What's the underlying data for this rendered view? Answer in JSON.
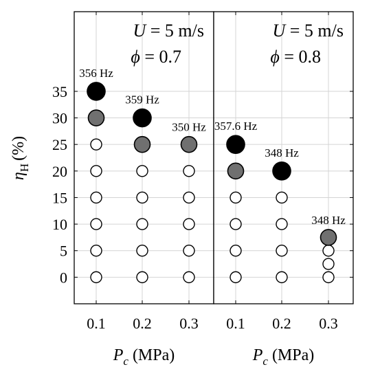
{
  "chart_data": {
    "type": "scatter",
    "ylabel": "ηH (%)",
    "ylabel_symbol": "η",
    "ylabel_sub": "H",
    "ylabel_unit": "(%)",
    "xlabel_symbol": "P",
    "xlabel_sub": "c",
    "xlabel_unit": "(MPa)",
    "ylim": [
      -5,
      50
    ],
    "yticks": [
      0,
      5,
      10,
      15,
      20,
      25,
      30,
      35
    ],
    "grid": true,
    "state_colors": {
      "stable": "#ffffff",
      "intermittent": "#707070",
      "unstable": "#000000"
    },
    "panels": [
      {
        "annotation_line1": "U = 5 m/s",
        "annotation_line1_var": "U",
        "annotation_line1_rest": " = 5 m/s",
        "annotation_line2_var": "ϕ",
        "annotation_line2_rest": " = 0.7",
        "xticks": [
          "0.1",
          "0.2",
          "0.3"
        ],
        "xvalues": [
          0.1,
          0.2,
          0.3
        ],
        "points": [
          {
            "x": 0.1,
            "y": 0,
            "state": "stable"
          },
          {
            "x": 0.1,
            "y": 5,
            "state": "stable"
          },
          {
            "x": 0.1,
            "y": 10,
            "state": "stable"
          },
          {
            "x": 0.1,
            "y": 15,
            "state": "stable"
          },
          {
            "x": 0.1,
            "y": 20,
            "state": "stable"
          },
          {
            "x": 0.1,
            "y": 25,
            "state": "stable"
          },
          {
            "x": 0.1,
            "y": 30,
            "state": "intermittent"
          },
          {
            "x": 0.1,
            "y": 35,
            "state": "unstable",
            "label": "356 Hz"
          },
          {
            "x": 0.2,
            "y": 0,
            "state": "stable"
          },
          {
            "x": 0.2,
            "y": 5,
            "state": "stable"
          },
          {
            "x": 0.2,
            "y": 10,
            "state": "stable"
          },
          {
            "x": 0.2,
            "y": 15,
            "state": "stable"
          },
          {
            "x": 0.2,
            "y": 20,
            "state": "stable"
          },
          {
            "x": 0.2,
            "y": 25,
            "state": "intermittent"
          },
          {
            "x": 0.2,
            "y": 30,
            "state": "unstable",
            "label": "359 Hz"
          },
          {
            "x": 0.3,
            "y": 0,
            "state": "stable"
          },
          {
            "x": 0.3,
            "y": 5,
            "state": "stable"
          },
          {
            "x": 0.3,
            "y": 10,
            "state": "stable"
          },
          {
            "x": 0.3,
            "y": 15,
            "state": "stable"
          },
          {
            "x": 0.3,
            "y": 20,
            "state": "stable"
          },
          {
            "x": 0.3,
            "y": 25,
            "state": "intermittent",
            "label": "350 Hz"
          }
        ]
      },
      {
        "annotation_line1_var": "U",
        "annotation_line1_rest": " = 5 m/s",
        "annotation_line2_var": "ϕ",
        "annotation_line2_rest": " = 0.8",
        "xticks": [
          "0.1",
          "0.2",
          "0.3"
        ],
        "xvalues": [
          0.1,
          0.2,
          0.3
        ],
        "points": [
          {
            "x": 0.1,
            "y": 0,
            "state": "stable"
          },
          {
            "x": 0.1,
            "y": 5,
            "state": "stable"
          },
          {
            "x": 0.1,
            "y": 10,
            "state": "stable"
          },
          {
            "x": 0.1,
            "y": 15,
            "state": "stable"
          },
          {
            "x": 0.1,
            "y": 20,
            "state": "intermittent"
          },
          {
            "x": 0.1,
            "y": 25,
            "state": "unstable",
            "label": "357.6 Hz"
          },
          {
            "x": 0.2,
            "y": 0,
            "state": "stable"
          },
          {
            "x": 0.2,
            "y": 5,
            "state": "stable"
          },
          {
            "x": 0.2,
            "y": 10,
            "state": "stable"
          },
          {
            "x": 0.2,
            "y": 15,
            "state": "stable"
          },
          {
            "x": 0.2,
            "y": 20,
            "state": "unstable",
            "label": "348 Hz"
          },
          {
            "x": 0.3,
            "y": 0,
            "state": "stable"
          },
          {
            "x": 0.3,
            "y": 2.5,
            "state": "stable"
          },
          {
            "x": 0.3,
            "y": 5,
            "state": "stable"
          },
          {
            "x": 0.3,
            "y": 7.5,
            "state": "intermittent",
            "label": "348 Hz"
          }
        ]
      }
    ]
  }
}
